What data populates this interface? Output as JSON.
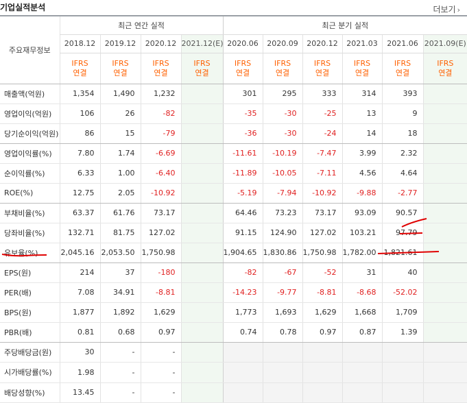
{
  "header": {
    "title": "기업실적분석",
    "more_label": "더보기"
  },
  "table": {
    "row_header_label": "주요재무정보",
    "group_annual": "최근 연간 실적",
    "group_quarter": "최근 분기 실적",
    "periods": [
      "2018.12",
      "2019.12",
      "2020.12",
      "2021.12(E)",
      "2020.06",
      "2020.09",
      "2020.12",
      "2021.03",
      "2021.06",
      "2021.09(E)"
    ],
    "ifrs_top": "IFRS",
    "ifrs_bottom": "연결",
    "rows": [
      {
        "label": "매출액(억원)",
        "values": [
          "1,354",
          "1,490",
          "1,232",
          "",
          "301",
          "295",
          "333",
          "314",
          "393",
          ""
        ]
      },
      {
        "label": "영업이익(억원)",
        "values": [
          "106",
          "26",
          "-82",
          "",
          "-35",
          "-30",
          "-25",
          "13",
          "9",
          ""
        ]
      },
      {
        "label": "당기순이익(억원)",
        "values": [
          "86",
          "15",
          "-79",
          "",
          "-36",
          "-30",
          "-24",
          "14",
          "18",
          ""
        ]
      },
      {
        "label": "영업이익률(%)",
        "values": [
          "7.80",
          "1.74",
          "-6.69",
          "",
          "-11.61",
          "-10.19",
          "-7.47",
          "3.99",
          "2.32",
          ""
        ]
      },
      {
        "label": "순이익률(%)",
        "values": [
          "6.33",
          "1.00",
          "-6.40",
          "",
          "-11.89",
          "-10.05",
          "-7.11",
          "4.56",
          "4.64",
          ""
        ]
      },
      {
        "label": "ROE(%)",
        "values": [
          "12.75",
          "2.05",
          "-10.92",
          "",
          "-5.19",
          "-7.94",
          "-10.92",
          "-9.88",
          "-2.77",
          ""
        ]
      },
      {
        "label": "부채비율(%)",
        "values": [
          "63.37",
          "61.76",
          "73.17",
          "",
          "64.46",
          "73.23",
          "73.17",
          "93.09",
          "90.57",
          ""
        ]
      },
      {
        "label": "당좌비율(%)",
        "values": [
          "132.71",
          "81.75",
          "127.02",
          "",
          "91.15",
          "124.90",
          "127.02",
          "103.21",
          "97.79",
          ""
        ]
      },
      {
        "label": "유보율(%)",
        "values": [
          "2,045.16",
          "2,053.50",
          "1,750.98",
          "",
          "1,904.65",
          "1,830.86",
          "1,750.98",
          "1,782.00",
          "1,821.61",
          ""
        ]
      },
      {
        "label": "EPS(원)",
        "values": [
          "214",
          "37",
          "-180",
          "",
          "-82",
          "-67",
          "-52",
          "31",
          "40",
          ""
        ]
      },
      {
        "label": "PER(배)",
        "values": [
          "7.08",
          "34.91",
          "-8.81",
          "",
          "-14.23",
          "-9.77",
          "-8.81",
          "-8.68",
          "-52.02",
          ""
        ]
      },
      {
        "label": "BPS(원)",
        "values": [
          "1,877",
          "1,892",
          "1,629",
          "",
          "1,773",
          "1,693",
          "1,629",
          "1,668",
          "1,709",
          ""
        ]
      },
      {
        "label": "PBR(배)",
        "values": [
          "0.81",
          "0.68",
          "0.97",
          "",
          "0.74",
          "0.78",
          "0.97",
          "0.87",
          "1.39",
          ""
        ]
      },
      {
        "label": "주당배당금(원)",
        "values": [
          "30",
          "-",
          "-",
          "",
          "",
          "",
          "",
          "",
          "",
          ""
        ]
      },
      {
        "label": "시가배당률(%)",
        "values": [
          "1.98",
          "-",
          "-",
          "",
          "",
          "",
          "",
          "",
          "",
          ""
        ]
      },
      {
        "label": "배당성향(%)",
        "values": [
          "13.45",
          "-",
          "-",
          "",
          "",
          "",
          "",
          "",
          "",
          ""
        ]
      }
    ]
  },
  "colors": {
    "negative": "#e02020",
    "ifrs": "#ff6000",
    "estimate_bg": "#f1f8f1",
    "annotation": "#e00000"
  }
}
